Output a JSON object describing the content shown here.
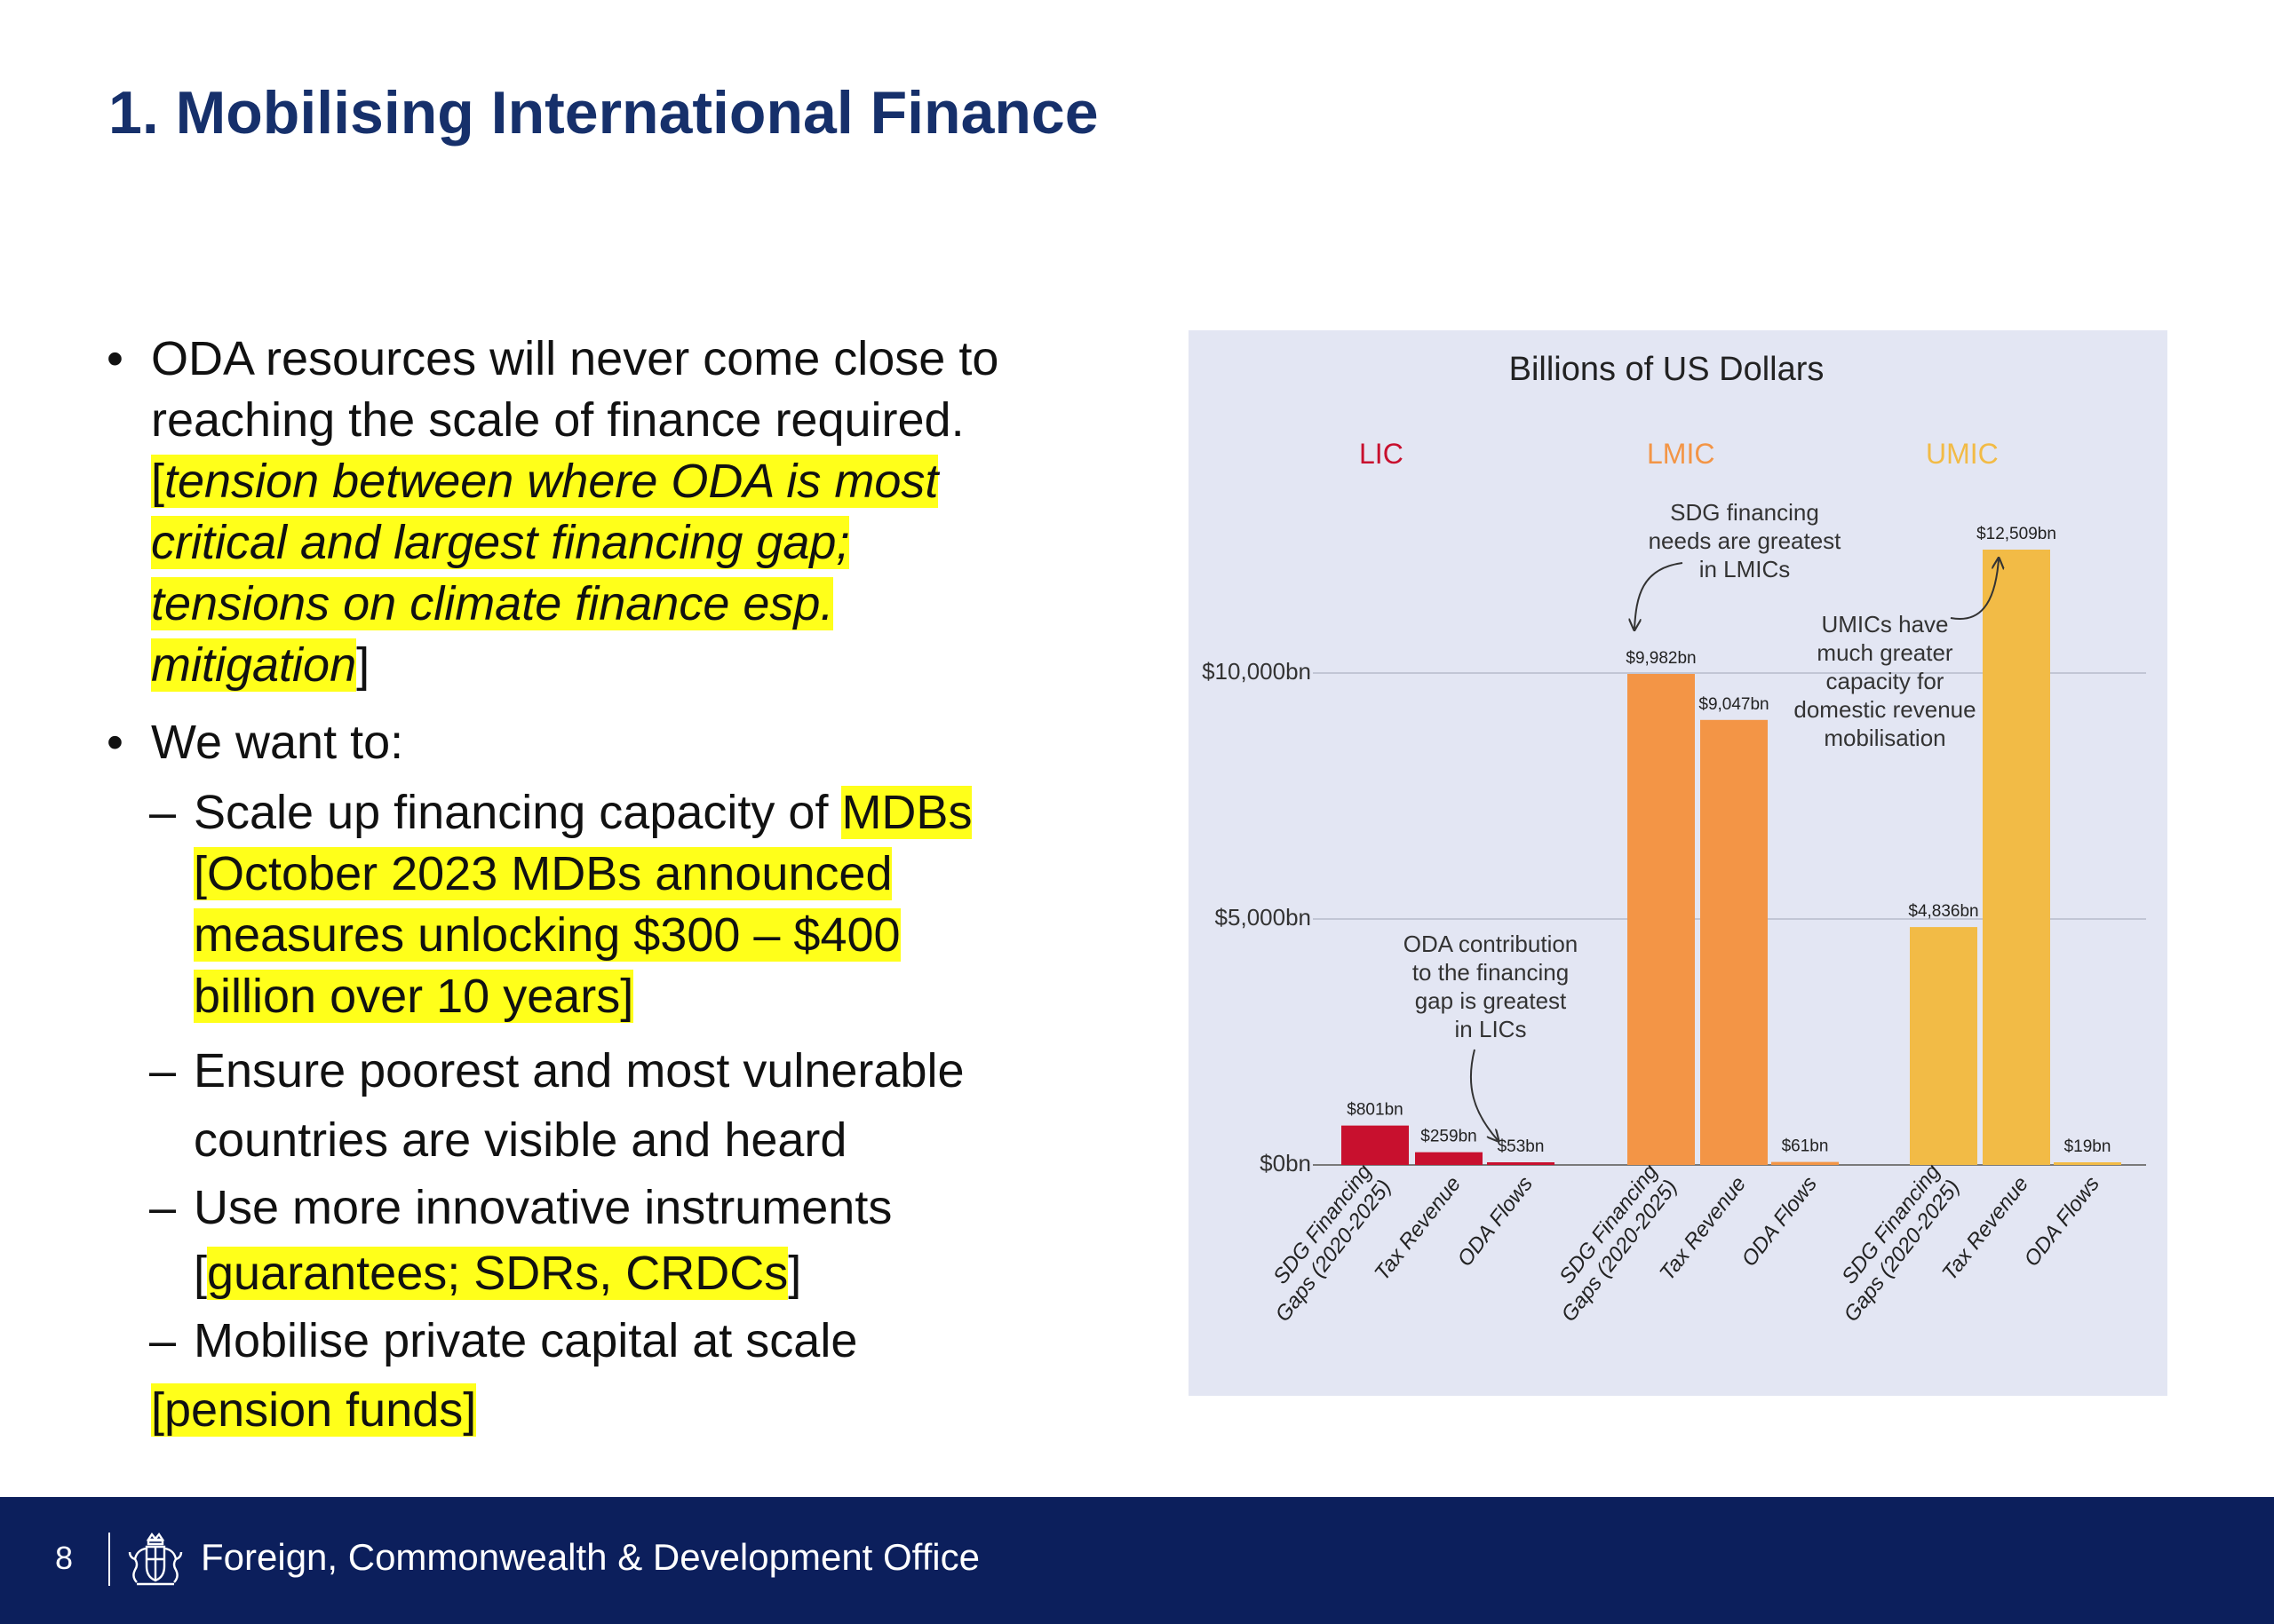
{
  "slide": {
    "title": "1. Mobilising International Finance",
    "page_number": "8"
  },
  "bullets": {
    "b1_line1": "ODA resources will never come close to",
    "b1_line2": "reaching the scale of finance required.",
    "b1_note_open": "[",
    "b1_note_l1": "tension between where ODA is most",
    "b1_note_l2": "critical and largest financing gap;",
    "b1_note_l3": "tensions on climate finance esp.",
    "b1_note_l4": "mitigation",
    "b1_note_close": "]",
    "b2": "We want to:",
    "s1_text": "Scale up financing capacity of ",
    "s1_hl": "MDBs",
    "s1_l2": "[October 2023 MDBs announced",
    "s1_l3": "measures unlocking $300 – $400",
    "s1_l4": "billion over 10 years]",
    "s2_l1": "Ensure poorest and most vulnerable",
    "s2_l2": "countries are visible and heard",
    "s3_l1": "Use more innovative instruments",
    "s3_open": "[",
    "s3_hl": "guarantees; SDRs, CRDCs",
    "s3_close": "]",
    "s4_l1": "Mobilise private capital at scale",
    "s4_hl": "[pension funds]",
    "bullet_symbol": "•",
    "dash_symbol": "–"
  },
  "chart_data": {
    "type": "bar",
    "title": "Billions of US Dollars",
    "y_unit": "bn US$",
    "ylim": [
      0,
      13000
    ],
    "y_ticks": [
      {
        "value": 0,
        "label": "$0bn"
      },
      {
        "value": 5000,
        "label": "$5,000bn"
      },
      {
        "value": 10000,
        "label": "$10,000bn"
      }
    ],
    "grid": true,
    "groups": [
      {
        "name": "LIC",
        "color": "#c8102e",
        "bars": [
          {
            "category": [
              "SDG Financing",
              "Gaps (2020-2025)"
            ],
            "value": 801,
            "label": "$801bn"
          },
          {
            "category": [
              "Tax Revenue"
            ],
            "value": 259,
            "label": "$259bn"
          },
          {
            "category": [
              "ODA Flows"
            ],
            "value": 53,
            "label": "$53bn"
          }
        ]
      },
      {
        "name": "LMIC",
        "color": "#f39546",
        "bars": [
          {
            "category": [
              "SDG Financing",
              "Gaps (2020-2025)"
            ],
            "value": 9982,
            "label": "$9,982bn"
          },
          {
            "category": [
              "Tax Revenue"
            ],
            "value": 9047,
            "label": "$9,047bn"
          },
          {
            "category": [
              "ODA Flows"
            ],
            "value": 61,
            "label": "$61bn"
          }
        ]
      },
      {
        "name": "UMIC",
        "color": "#f2bb46",
        "bars": [
          {
            "category": [
              "SDG Financing",
              "Gaps (2020-2025)"
            ],
            "value": 4836,
            "label": "$4,836bn"
          },
          {
            "category": [
              "Tax Revenue"
            ],
            "value": 12509,
            "label": "$12,509bn"
          },
          {
            "category": [
              "ODA Flows"
            ],
            "value": 19,
            "label": "$19bn"
          }
        ]
      }
    ],
    "annotations": [
      {
        "text": [
          "ODA contribution",
          "to the financing",
          "gap is greatest",
          "in LICs"
        ],
        "group": 0
      },
      {
        "text": [
          "SDG financing",
          "needs are greatest",
          "in LMICs"
        ],
        "group": 1
      },
      {
        "text": [
          "UMICs have",
          "much greater",
          "capacity for",
          "domestic revenue",
          "mobilisation"
        ],
        "group": 2
      }
    ]
  },
  "footer": {
    "org_name": "Foreign, Commonwealth & Development Office",
    "crest_icon": "royal-crest-icon"
  }
}
